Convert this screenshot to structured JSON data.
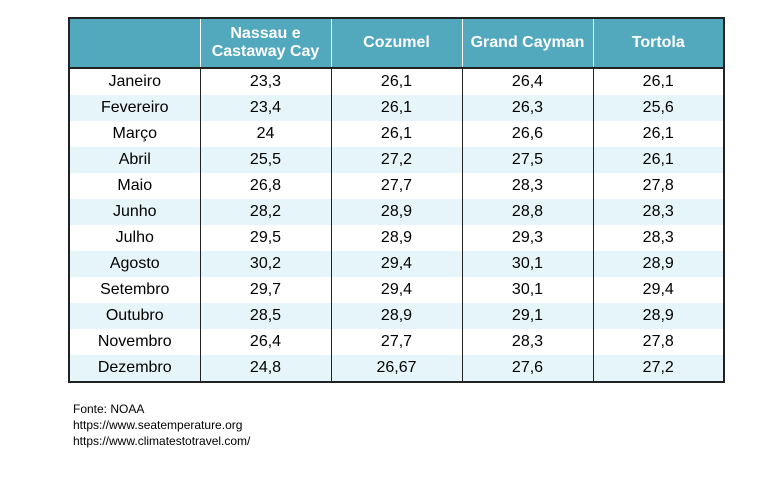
{
  "table": {
    "headers": [
      "",
      "Nassau e Castaway Cay",
      "Cozumel",
      "Grand Cayman",
      "Tortola"
    ],
    "rows": [
      [
        "Janeiro",
        "23,3",
        "26,1",
        "26,4",
        "26,1"
      ],
      [
        "Fevereiro",
        "23,4",
        "26,1",
        "26,3",
        "25,6"
      ],
      [
        "Março",
        "24",
        "26,1",
        "26,6",
        "26,1"
      ],
      [
        "Abril",
        "25,5",
        "27,2",
        "27,5",
        "26,1"
      ],
      [
        "Maio",
        "26,8",
        "27,7",
        "28,3",
        "27,8"
      ],
      [
        "Junho",
        "28,2",
        "28,9",
        "28,8",
        "28,3"
      ],
      [
        "Julho",
        "29,5",
        "28,9",
        "29,3",
        "28,3"
      ],
      [
        "Agosto",
        "30,2",
        "29,4",
        "30,1",
        "28,9"
      ],
      [
        "Setembro",
        "29,7",
        "29,4",
        "30,1",
        "29,4"
      ],
      [
        "Outubro",
        "28,5",
        "28,9",
        "29,1",
        "28,9"
      ],
      [
        "Novembro",
        "26,4",
        "27,7",
        "28,3",
        "27,8"
      ],
      [
        "Dezembro",
        "24,8",
        "26,67",
        "27,6",
        "27,2"
      ]
    ],
    "header_color": "#52a9be",
    "stripe_color": "#e6f5fa"
  },
  "notes": {
    "source": "Fonte: NOAA",
    "link1": "https://www.seatemperature.org",
    "link2": "https://www.climatestotravel.com/"
  }
}
